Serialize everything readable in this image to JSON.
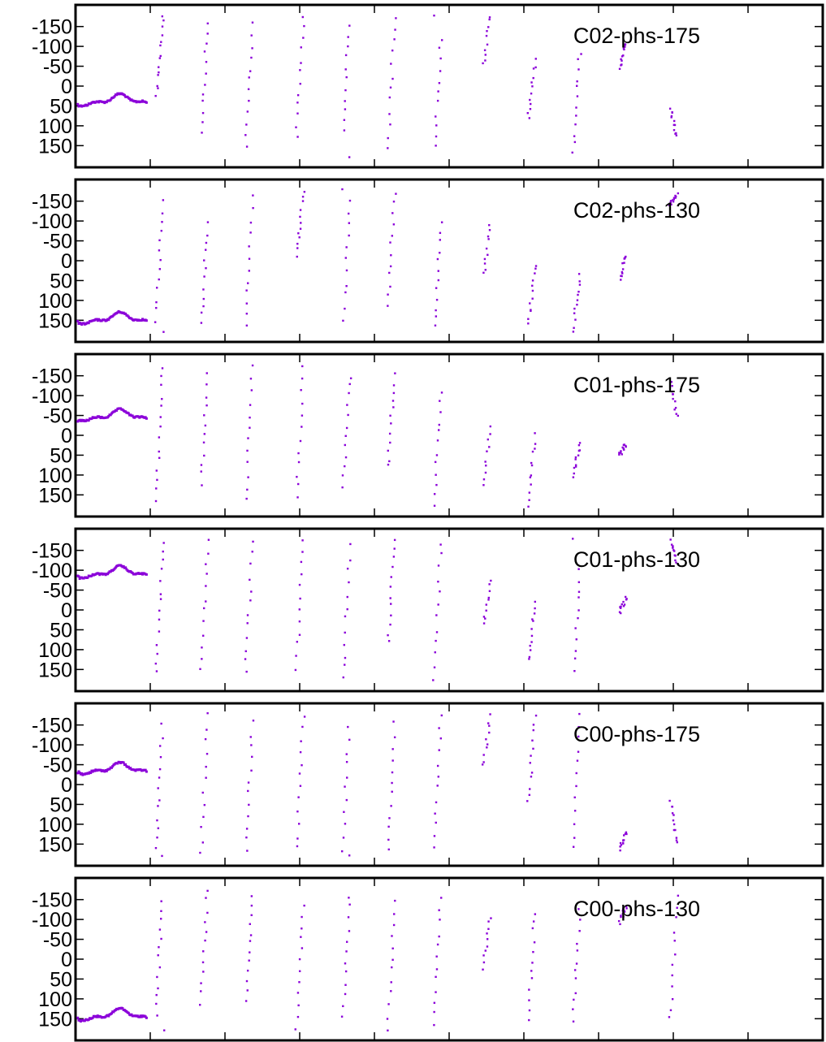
{
  "colors": {
    "series": "#8b00d9",
    "axis": "#000000",
    "background": "#ffffff"
  },
  "chart_data": [
    {
      "type": "scatter",
      "label": "C02-phs-175",
      "ylim": [
        -180,
        180
      ],
      "y_reversed": true,
      "y_ticks": [
        "-150",
        "-100",
        "-50",
        "0",
        "50",
        "100",
        "150"
      ],
      "y_tick_values": [
        -150,
        -100,
        -50,
        0,
        50,
        100,
        150
      ],
      "xlim": [
        0,
        100
      ],
      "x_ticks": [
        10,
        20,
        30,
        40,
        50,
        60,
        70,
        80,
        90
      ],
      "grid": false,
      "wave": {
        "x_start": 0.3,
        "x_end": 9.5,
        "center": 45,
        "amp": 22
      },
      "stripes": [
        {
          "x": 10.8,
          "y0": 25,
          "y1": -175,
          "wrap": 180,
          "n": 14
        },
        {
          "x": 16.8,
          "y0": 120,
          "y1": -160,
          "wrap": 180,
          "n": 12
        },
        {
          "x": 22.8,
          "y0": 150,
          "y1": -155,
          "wrap": 180,
          "n": 12
        },
        {
          "x": 29.6,
          "y0": 130,
          "y1": -175,
          "wrap": 180,
          "n": 12
        },
        {
          "x": 35.8,
          "y0": 115,
          "y1": -180,
          "wrap": 180,
          "n": 12
        },
        {
          "x": 41.8,
          "y0": 155,
          "y1": -175,
          "wrap": 180,
          "n": 12
        },
        {
          "x": 48.0,
          "y0": 180,
          "y1": -120,
          "wrap": 180,
          "n": 12
        },
        {
          "x": 54.6,
          "y0": -55,
          "y1": -175,
          "wrap": 180,
          "n": 10
        },
        {
          "x": 60.6,
          "y0": 85,
          "y1": -65,
          "wrap": 180,
          "n": 12
        },
        {
          "x": 66.6,
          "y0": 165,
          "y1": -85,
          "wrap": 180,
          "n": 12
        },
        {
          "x": 72.8,
          "y0": -50,
          "y1": -110,
          "wrap": 180,
          "n": 12
        },
        {
          "x": 79.6,
          "y0": 55,
          "y1": 130,
          "wrap": 180,
          "n": 12
        }
      ]
    },
    {
      "type": "scatter",
      "label": "C02-phs-130",
      "ylim": [
        -180,
        180
      ],
      "y_reversed": true,
      "y_ticks": [
        "-150",
        "-100",
        "-50",
        "0",
        "50",
        "100",
        "150"
      ],
      "y_tick_values": [
        -150,
        -100,
        -50,
        0,
        50,
        100,
        150
      ],
      "xlim": [
        0,
        100
      ],
      "x_ticks": [
        10,
        20,
        30,
        40,
        50,
        60,
        70,
        80,
        90
      ],
      "grid": false,
      "wave": {
        "x_start": 0.3,
        "x_end": 9.5,
        "center": 155,
        "amp": 22
      },
      "stripes": [
        {
          "x": 10.8,
          "y0": 150,
          "y1": -175,
          "wrap": 180,
          "n": 14
        },
        {
          "x": 16.8,
          "y0": 160,
          "y1": -90,
          "wrap": 180,
          "n": 12
        },
        {
          "x": 22.8,
          "y0": 170,
          "y1": -160,
          "wrap": 180,
          "n": 12
        },
        {
          "x": 29.6,
          "y0": -10,
          "y1": -175,
          "wrap": 180,
          "n": 12
        },
        {
          "x": 35.8,
          "y0": 175,
          "y1": -150,
          "wrap": 180,
          "n": 12
        },
        {
          "x": 41.8,
          "y0": 115,
          "y1": -175,
          "wrap": 180,
          "n": 12
        },
        {
          "x": 48.0,
          "y0": 170,
          "y1": -100,
          "wrap": 180,
          "n": 12
        },
        {
          "x": 54.6,
          "y0": 35,
          "y1": -90,
          "wrap": 180,
          "n": 10
        },
        {
          "x": 60.6,
          "y0": 160,
          "y1": 10,
          "wrap": 180,
          "n": 12
        },
        {
          "x": 66.6,
          "y0": 175,
          "y1": 40,
          "wrap": 180,
          "n": 12
        },
        {
          "x": 72.8,
          "y0": 45,
          "y1": -15,
          "wrap": 180,
          "n": 12
        },
        {
          "x": 79.6,
          "y0": -140,
          "y1": -165,
          "wrap": 180,
          "n": 12
        }
      ]
    },
    {
      "type": "scatter",
      "label": "C01-phs-175",
      "ylim": [
        -180,
        180
      ],
      "y_reversed": true,
      "y_ticks": [
        "-150",
        "-100",
        "-50",
        "0",
        "50",
        "100",
        "150"
      ],
      "y_tick_values": [
        -150,
        -100,
        -50,
        0,
        50,
        100,
        150
      ],
      "xlim": [
        0,
        100
      ],
      "x_ticks": [
        10,
        20,
        30,
        40,
        50,
        60,
        70,
        80,
        90
      ],
      "grid": false,
      "wave": {
        "x_start": 0.3,
        "x_end": 9.5,
        "center": -40,
        "amp": 22
      },
      "stripes": [
        {
          "x": 10.8,
          "y0": 165,
          "y1": -175,
          "wrap": 180,
          "n": 14
        },
        {
          "x": 16.8,
          "y0": 120,
          "y1": -150,
          "wrap": 180,
          "n": 12
        },
        {
          "x": 22.8,
          "y0": 165,
          "y1": -170,
          "wrap": 180,
          "n": 12
        },
        {
          "x": 29.6,
          "y0": 160,
          "y1": -175,
          "wrap": 180,
          "n": 12
        },
        {
          "x": 35.8,
          "y0": 125,
          "y1": -150,
          "wrap": 180,
          "n": 12
        },
        {
          "x": 41.8,
          "y0": 80,
          "y1": -150,
          "wrap": 180,
          "n": 12
        },
        {
          "x": 48.0,
          "y0": 175,
          "y1": -110,
          "wrap": 180,
          "n": 12
        },
        {
          "x": 54.6,
          "y0": 125,
          "y1": -20,
          "wrap": 180,
          "n": 10
        },
        {
          "x": 60.6,
          "y0": 175,
          "y1": 0,
          "wrap": 180,
          "n": 12
        },
        {
          "x": 66.6,
          "y0": 100,
          "y1": 25,
          "wrap": 180,
          "n": 12
        },
        {
          "x": 72.8,
          "y0": 50,
          "y1": 20,
          "wrap": 180,
          "n": 12
        },
        {
          "x": 79.6,
          "y0": -140,
          "y1": -50,
          "wrap": 180,
          "n": 12
        }
      ]
    },
    {
      "type": "scatter",
      "label": "C01-phs-130",
      "ylim": [
        -180,
        180
      ],
      "y_reversed": true,
      "y_ticks": [
        "-150",
        "-100",
        "-50",
        "0",
        "50",
        "100",
        "150"
      ],
      "y_tick_values": [
        -150,
        -100,
        -50,
        0,
        50,
        100,
        150
      ],
      "xlim": [
        0,
        100
      ],
      "x_ticks": [
        10,
        20,
        30,
        40,
        50,
        60,
        70,
        80,
        90
      ],
      "grid": false,
      "wave": {
        "x_start": 0.3,
        "x_end": 9.5,
        "center": -85,
        "amp": 22
      },
      "stripes": [
        {
          "x": 10.8,
          "y0": 160,
          "y1": -175,
          "wrap": 180,
          "n": 14
        },
        {
          "x": 16.8,
          "y0": 150,
          "y1": -175,
          "wrap": 180,
          "n": 12
        },
        {
          "x": 22.8,
          "y0": 160,
          "y1": -170,
          "wrap": 180,
          "n": 12
        },
        {
          "x": 29.6,
          "y0": 145,
          "y1": -175,
          "wrap": 180,
          "n": 12
        },
        {
          "x": 35.8,
          "y0": 175,
          "y1": -160,
          "wrap": 180,
          "n": 12
        },
        {
          "x": 41.8,
          "y0": 80,
          "y1": -175,
          "wrap": 180,
          "n": 12
        },
        {
          "x": 48.0,
          "y0": 175,
          "y1": -170,
          "wrap": 180,
          "n": 12
        },
        {
          "x": 54.6,
          "y0": 40,
          "y1": -70,
          "wrap": 180,
          "n": 10
        },
        {
          "x": 60.6,
          "y0": 130,
          "y1": -20,
          "wrap": 180,
          "n": 12
        },
        {
          "x": 66.6,
          "y0": 175,
          "y1": -100,
          "wrap": 180,
          "n": 12
        },
        {
          "x": 72.8,
          "y0": 5,
          "y1": -30,
          "wrap": 180,
          "n": 12
        },
        {
          "x": 79.6,
          "y0": -175,
          "y1": -120,
          "wrap": 180,
          "n": 12
        }
      ]
    },
    {
      "type": "scatter",
      "label": "C00-phs-175",
      "ylim": [
        -180,
        180
      ],
      "y_reversed": true,
      "y_ticks": [
        "-150",
        "-100",
        "-50",
        "0",
        "50",
        "100",
        "150"
      ],
      "y_tick_values": [
        -150,
        -100,
        -50,
        0,
        50,
        100,
        150
      ],
      "xlim": [
        0,
        100
      ],
      "x_ticks": [
        10,
        20,
        30,
        40,
        50,
        60,
        70,
        80,
        90
      ],
      "grid": false,
      "wave": {
        "x_start": 0.3,
        "x_end": 9.5,
        "center": -30,
        "amp": 22
      },
      "stripes": [
        {
          "x": 10.8,
          "y0": 165,
          "y1": -175,
          "wrap": 180,
          "n": 14
        },
        {
          "x": 16.8,
          "y0": 175,
          "y1": -175,
          "wrap": 180,
          "n": 12
        },
        {
          "x": 22.8,
          "y0": 165,
          "y1": -155,
          "wrap": 180,
          "n": 12
        },
        {
          "x": 29.6,
          "y0": 160,
          "y1": -175,
          "wrap": 180,
          "n": 12
        },
        {
          "x": 35.8,
          "y0": 165,
          "y1": -175,
          "wrap": 180,
          "n": 12
        },
        {
          "x": 41.8,
          "y0": 170,
          "y1": -155,
          "wrap": 180,
          "n": 12
        },
        {
          "x": 48.0,
          "y0": 160,
          "y1": -175,
          "wrap": 180,
          "n": 12
        },
        {
          "x": 54.6,
          "y0": -45,
          "y1": -175,
          "wrap": 180,
          "n": 10
        },
        {
          "x": 60.6,
          "y0": 45,
          "y1": -170,
          "wrap": 180,
          "n": 12
        },
        {
          "x": 66.6,
          "y0": 160,
          "y1": -175,
          "wrap": 180,
          "n": 12
        },
        {
          "x": 72.8,
          "y0": 160,
          "y1": 120,
          "wrap": 180,
          "n": 12
        },
        {
          "x": 79.6,
          "y0": 40,
          "y1": 150,
          "wrap": 180,
          "n": 12
        }
      ]
    },
    {
      "type": "scatter",
      "label": "C00-phs-130",
      "ylim": [
        -180,
        180
      ],
      "y_reversed": true,
      "y_ticks": [
        "-150",
        "-100",
        "-50",
        "0",
        "50",
        "100",
        "150"
      ],
      "y_tick_values": [
        -150,
        -100,
        -50,
        0,
        50,
        100,
        150
      ],
      "xlim": [
        0,
        100
      ],
      "x_ticks": [
        10,
        20,
        30,
        40,
        50,
        60,
        70,
        80,
        90
      ],
      "grid": false,
      "wave": {
        "x_start": 0.3,
        "x_end": 9.5,
        "center": 150,
        "amp": 22
      },
      "stripes": [
        {
          "x": 10.8,
          "y0": 140,
          "y1": -175,
          "wrap": 180,
          "n": 14
        },
        {
          "x": 16.8,
          "y0": 110,
          "y1": -175,
          "wrap": 180,
          "n": 12
        },
        {
          "x": 22.8,
          "y0": 100,
          "y1": -160,
          "wrap": 180,
          "n": 12
        },
        {
          "x": 29.6,
          "y0": 175,
          "y1": -135,
          "wrap": 180,
          "n": 12
        },
        {
          "x": 35.8,
          "y0": 150,
          "y1": -160,
          "wrap": 180,
          "n": 12
        },
        {
          "x": 41.8,
          "y0": 175,
          "y1": -150,
          "wrap": 180,
          "n": 12
        },
        {
          "x": 48.0,
          "y0": 165,
          "y1": -150,
          "wrap": 180,
          "n": 12
        },
        {
          "x": 54.6,
          "y0": 20,
          "y1": -110,
          "wrap": 180,
          "n": 10
        },
        {
          "x": 60.6,
          "y0": 150,
          "y1": -120,
          "wrap": 180,
          "n": 12
        },
        {
          "x": 66.6,
          "y0": 155,
          "y1": -120,
          "wrap": 180,
          "n": 12
        },
        {
          "x": 72.8,
          "y0": -95,
          "y1": -135,
          "wrap": 180,
          "n": 12
        },
        {
          "x": 79.6,
          "y0": 150,
          "y1": -155,
          "wrap": 180,
          "n": 12
        }
      ]
    }
  ]
}
